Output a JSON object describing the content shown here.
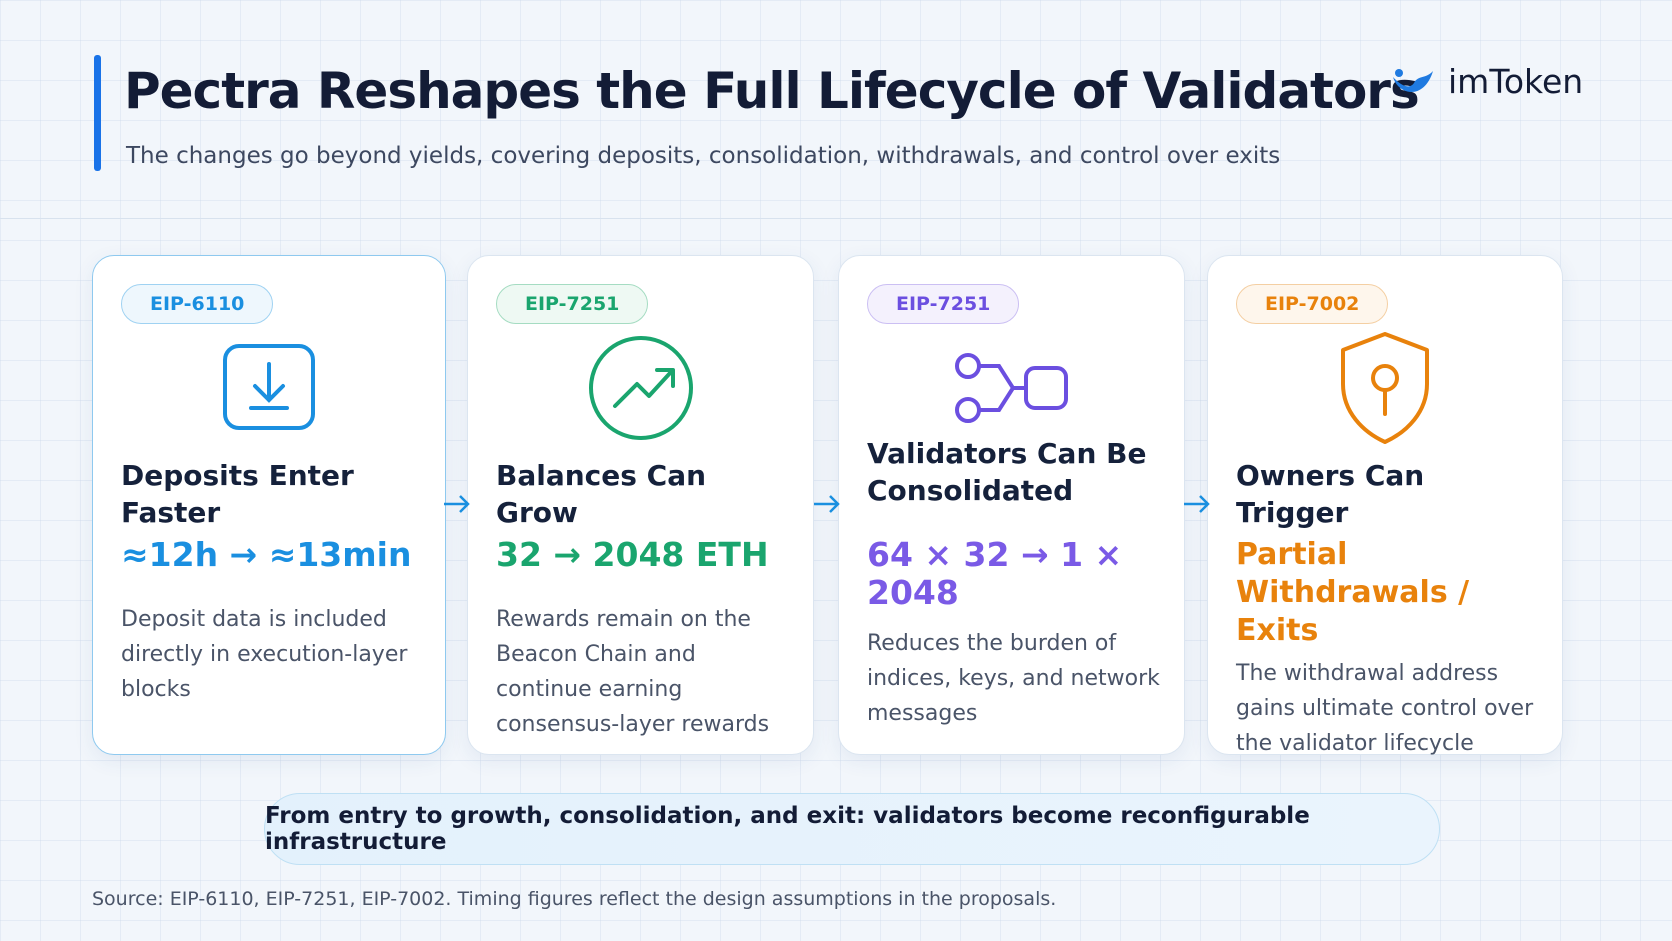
{
  "header": {
    "title": "Pectra Reshapes the Full Lifecycle of Validators",
    "subtitle": "The changes go beyond yields, covering deposits, consolidation, withdrawals, and control over exits",
    "brand": "imToken"
  },
  "cards": [
    {
      "tag": "EIP-6110",
      "title": "Deposits Enter Faster",
      "highlight": "≈12h → ≈13min",
      "description": "Deposit data is included directly in execution-layer blocks"
    },
    {
      "tag": "EIP-7251",
      "title": "Balances Can Grow",
      "highlight": "32 → 2048 ETH",
      "description": "Rewards remain on the Beacon Chain and continue earning consensus-layer rewards"
    },
    {
      "tag": "EIP-7251",
      "title": "Validators Can Be Consolidated",
      "highlight": "64 × 32 → 1 × 2048",
      "description": "Reduces the burden of indices, keys, and network messages"
    },
    {
      "tag": "EIP-7002",
      "title": "Owners Can Trigger",
      "highlight": "Partial Withdrawals / Exits",
      "description": "The withdrawal address gains ultimate control over the validator lifecycle"
    }
  ],
  "banner": "From entry to growth, consolidation, and exit: validators become reconfigurable infrastructure",
  "source": "Source: EIP-6110, EIP-7251, EIP-7002. Timing figures reflect the design assumptions in the proposals."
}
